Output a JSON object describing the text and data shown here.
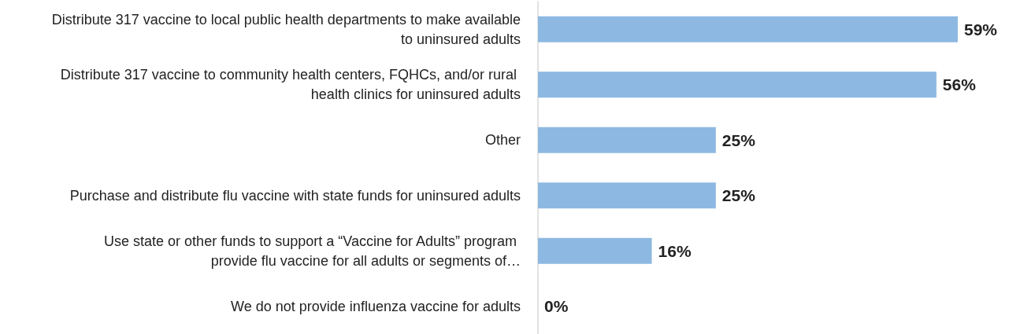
{
  "chart_data": {
    "type": "bar",
    "orientation": "horizontal",
    "grid": false,
    "categories": [
      "Distribute 317 vaccine to local public health departments to make available to uninsured adults",
      "Distribute 317 vaccine to community health centers, FQHCs, and/or rural health clinics for uninsured adults",
      "Other",
      "Purchase and distribute flu vaccine with state funds for uninsured adults",
      "Use state or other funds to support a “Vaccine for Adults” program provide flu vaccine for all adults or segments of…",
      "We do not provide influenza vaccine for adults"
    ],
    "values": [
      59,
      56,
      25,
      25,
      16,
      0
    ],
    "value_labels": [
      "59%",
      "56%",
      "25%",
      "25%",
      "16%",
      "0%"
    ],
    "color": "#8db8e2"
  }
}
